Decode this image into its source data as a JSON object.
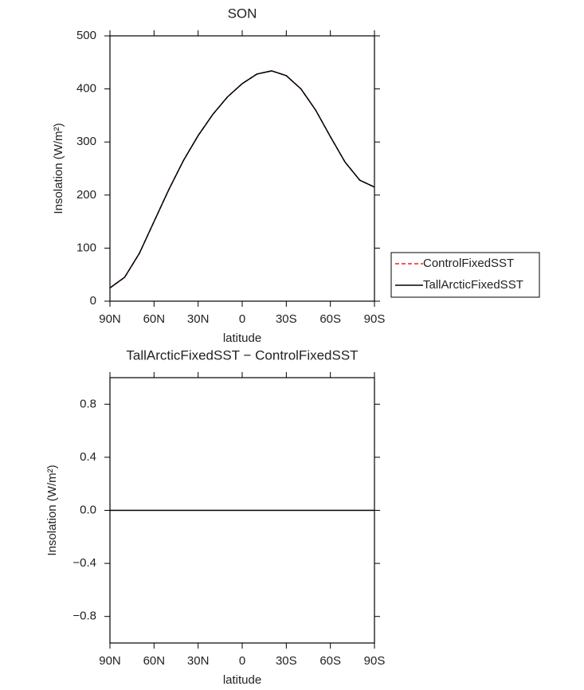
{
  "chart_data": [
    {
      "type": "line",
      "title": "SON",
      "xlabel": "latitude",
      "ylabel": "Insolation (W/m²)",
      "x": [
        90,
        80,
        70,
        60,
        50,
        40,
        30,
        20,
        10,
        0,
        -10,
        -20,
        -30,
        -40,
        -50,
        -60,
        -70,
        -80,
        -90
      ],
      "series": [
        {
          "name": "ControlFixedSST",
          "color": "#e8222a",
          "dashed": true,
          "values": [
            25,
            45,
            90,
            150,
            210,
            265,
            312,
            352,
            385,
            410,
            428,
            434,
            425,
            400,
            360,
            310,
            262,
            228,
            215
          ]
        },
        {
          "name": "TallArcticFixedSST",
          "color": "#000000",
          "dashed": false,
          "values": [
            25,
            45,
            90,
            150,
            210,
            265,
            312,
            352,
            385,
            410,
            428,
            434,
            425,
            400,
            360,
            310,
            262,
            228,
            215
          ]
        }
      ],
      "xlim": [
        90,
        -90
      ],
      "xticks": [
        {
          "value": 90,
          "label": "90N"
        },
        {
          "value": 60,
          "label": "60N"
        },
        {
          "value": 30,
          "label": "30N"
        },
        0,
        {
          "value": -30,
          "label": "30S"
        },
        {
          "value": -60,
          "label": "60S"
        },
        {
          "value": -90,
          "label": "90S"
        }
      ],
      "ylim": [
        0,
        500
      ],
      "yticks": [
        0,
        100,
        200,
        300,
        400,
        500
      ],
      "legend": "right"
    },
    {
      "type": "line",
      "title": "TallArcticFixedSST − ControlFixedSST",
      "xlabel": "latitude",
      "ylabel": "Insolation (W/m²)",
      "x": [
        90,
        80,
        70,
        60,
        50,
        40,
        30,
        20,
        10,
        0,
        -10,
        -20,
        -30,
        -40,
        -50,
        -60,
        -70,
        -80,
        -90
      ],
      "series": [
        {
          "color": "#000000",
          "dashed": false,
          "values": [
            0,
            0,
            0,
            0,
            0,
            0,
            0,
            0,
            0,
            0,
            0,
            0,
            0,
            0,
            0,
            0,
            0,
            0,
            0
          ]
        }
      ],
      "xlim": [
        90,
        -90
      ],
      "xticks": [
        {
          "value": 90,
          "label": "90N"
        },
        {
          "value": 60,
          "label": "60N"
        },
        {
          "value": 30,
          "label": "30N"
        },
        0,
        {
          "value": -30,
          "label": "30S"
        },
        {
          "value": -60,
          "label": "60S"
        },
        {
          "value": -90,
          "label": "90S"
        }
      ],
      "ylim": [
        -1,
        1
      ],
      "yticks": [
        {
          "value": -0.8,
          "label": "−0.8"
        },
        {
          "value": -0.4,
          "label": "−0.4"
        },
        {
          "value": 0,
          "label": "0.0"
        },
        0.4,
        0.8
      ]
    }
  ]
}
